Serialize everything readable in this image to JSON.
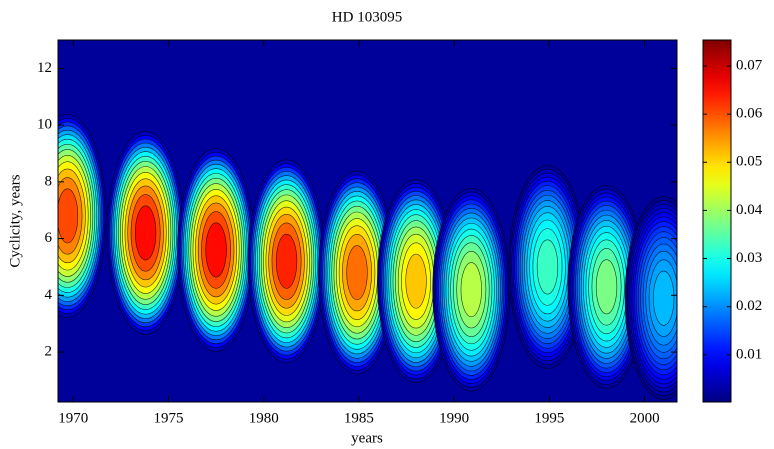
{
  "chart_data": {
    "type": "heatmap",
    "title": "HD 103095",
    "xlabel": "years",
    "ylabel": "Cyclicity, years",
    "xlim": [
      1969.2,
      2001.7
    ],
    "xticks": [
      1970,
      1975,
      1980,
      1985,
      1990,
      1995,
      2000
    ],
    "ylim": [
      0.24,
      13
    ],
    "yticks": [
      2,
      4,
      6,
      8,
      10,
      12
    ],
    "colorbar": {
      "lim": [
        0.0002,
        0.0754
      ],
      "ticks": [
        0.01,
        0.02,
        0.03,
        0.04,
        0.05,
        0.06,
        0.07
      ]
    },
    "x": [
      1969.7,
      1973.8,
      1977.5,
      1981.2,
      1984.9,
      1988.0,
      1990.9,
      1994.9,
      1998.0,
      2001.0
    ],
    "y": [
      6.8,
      6.2,
      5.6,
      5.2,
      4.8,
      4.5,
      4.2,
      5.0,
      4.3,
      3.9
    ],
    "values": [
      0.065,
      0.07,
      0.07,
      0.068,
      0.062,
      0.055,
      0.045,
      0.035,
      0.04,
      0.025
    ]
  }
}
